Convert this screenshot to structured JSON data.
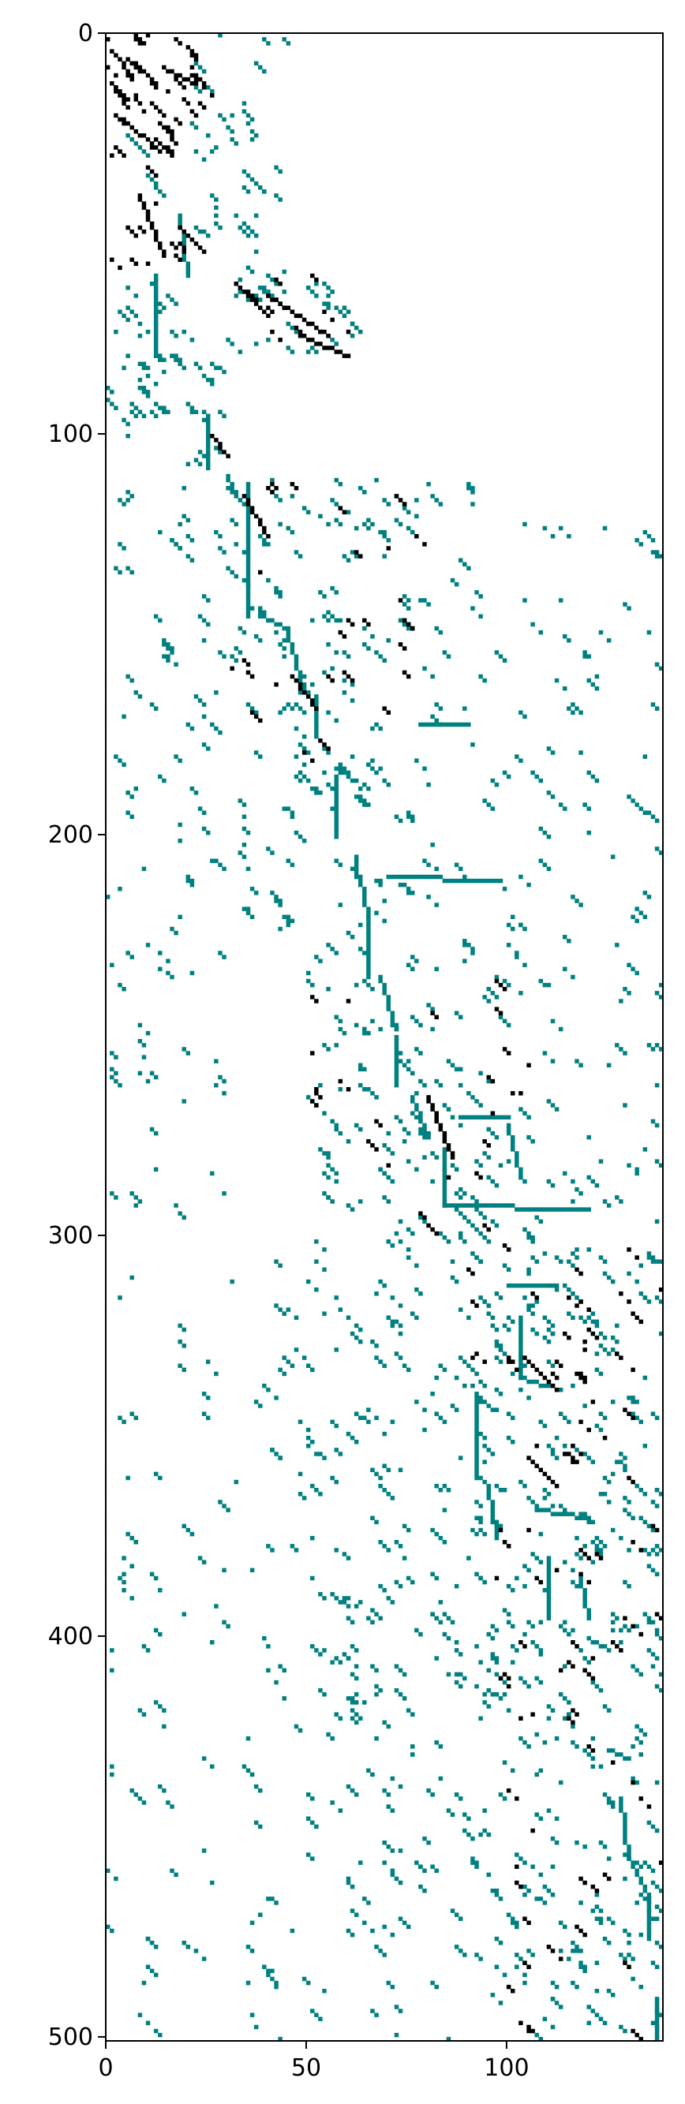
{
  "chart_data": {
    "type": "heatmap",
    "title": "",
    "xlabel": "",
    "ylabel": "",
    "xlim": [
      0,
      139
    ],
    "ylim": [
      0,
      501
    ],
    "y_inverted": true,
    "x_ticks": [
      0,
      50,
      100
    ],
    "y_ticks": [
      0,
      100,
      200,
      300,
      400,
      500
    ],
    "x_tick_labels": [
      "0",
      "50",
      "100"
    ],
    "y_tick_labels": [
      "0",
      "100",
      "200",
      "300",
      "400",
      "500"
    ],
    "grid": false,
    "legend": "none",
    "colors": {
      "primary": "#008080",
      "secondary": "#000000",
      "background": "#ffffff"
    },
    "series": [
      {
        "color": "#008080",
        "segments": [
          [
            12,
            60,
            12,
            80
          ],
          [
            25,
            95,
            25,
            108
          ],
          [
            35,
            112,
            35,
            145
          ],
          [
            38,
            145,
            45,
            148
          ],
          [
            45,
            150,
            48,
            160
          ],
          [
            48,
            160,
            50,
            165
          ],
          [
            52,
            165,
            52,
            175
          ],
          [
            57,
            185,
            57,
            200
          ],
          [
            62,
            205,
            62,
            210
          ],
          [
            63,
            210,
            65,
            220
          ],
          [
            65,
            220,
            65,
            235
          ],
          [
            68,
            235,
            72,
            248
          ],
          [
            72,
            250,
            72,
            262
          ],
          [
            76,
            265,
            80,
            275
          ],
          [
            84,
            278,
            84,
            292
          ],
          [
            84,
            292,
            120,
            293
          ],
          [
            78,
            172,
            90,
            172
          ],
          [
            70,
            210,
            98,
            211
          ],
          [
            88,
            270,
            100,
            270
          ],
          [
            100,
            272,
            103,
            285
          ],
          [
            100,
            312,
            112,
            312
          ],
          [
            103,
            320,
            103,
            335
          ],
          [
            103,
            335,
            113,
            338
          ],
          [
            92,
            340,
            92,
            360
          ],
          [
            95,
            362,
            97,
            375
          ],
          [
            107,
            368,
            120,
            370
          ],
          [
            110,
            380,
            110,
            395
          ],
          [
            118,
            385,
            120,
            395
          ],
          [
            120,
            400,
            125,
            403
          ],
          [
            125,
            428,
            130,
            430
          ],
          [
            128,
            440,
            130,
            455
          ],
          [
            130,
            455,
            135,
            465
          ],
          [
            135,
            465,
            135,
            475
          ],
          [
            137,
            490,
            137,
            500
          ],
          [
            30,
            110,
            32,
            115
          ],
          [
            18,
            45,
            20,
            60
          ],
          [
            5,
            25,
            10,
            30
          ],
          [
            10,
            35,
            14,
            40
          ]
        ],
        "density": [
          [
            0,
            30,
            0,
            60,
            0.16
          ],
          [
            0,
            60,
            20,
            90,
            0.07
          ],
          [
            20,
            0,
            45,
            55,
            0.06
          ],
          [
            30,
            58,
            62,
            80,
            0.09
          ],
          [
            0,
            80,
            30,
            110,
            0.07
          ],
          [
            30,
            110,
            80,
            160,
            0.06
          ],
          [
            80,
            110,
            139,
            160,
            0.02
          ],
          [
            0,
            110,
            30,
            300,
            0.03
          ],
          [
            30,
            160,
            70,
            230,
            0.05
          ],
          [
            70,
            160,
            139,
            230,
            0.025
          ],
          [
            50,
            230,
            100,
            300,
            0.06
          ],
          [
            100,
            230,
            139,
            300,
            0.03
          ],
          [
            0,
            300,
            50,
            420,
            0.02
          ],
          [
            50,
            300,
            90,
            420,
            0.05
          ],
          [
            90,
            300,
            139,
            420,
            0.07
          ],
          [
            0,
            420,
            60,
            501,
            0.02
          ],
          [
            60,
            420,
            110,
            501,
            0.04
          ],
          [
            110,
            420,
            139,
            501,
            0.06
          ]
        ]
      },
      {
        "color": "#000000",
        "segments": [
          [
            1,
            4,
            6,
            10
          ],
          [
            1,
            12,
            5,
            18
          ],
          [
            5,
            6,
            12,
            12
          ],
          [
            14,
            8,
            22,
            12
          ],
          [
            2,
            20,
            10,
            26
          ],
          [
            32,
            62,
            40,
            70
          ],
          [
            40,
            65,
            55,
            75
          ],
          [
            48,
            75,
            60,
            80
          ],
          [
            8,
            40,
            14,
            55
          ],
          [
            18,
            48,
            24,
            54
          ],
          [
            46,
            160,
            52,
            168
          ],
          [
            80,
            265,
            86,
            280
          ],
          [
            104,
            330,
            112,
            338
          ],
          [
            105,
            355,
            112,
            362
          ],
          [
            34,
            115,
            40,
            125
          ],
          [
            26,
            100,
            30,
            105
          ],
          [
            12,
            26,
            16,
            30
          ]
        ],
        "density": [
          [
            0,
            0,
            25,
            30,
            0.1
          ],
          [
            0,
            30,
            20,
            60,
            0.04
          ],
          [
            30,
            60,
            62,
            80,
            0.03
          ],
          [
            30,
            110,
            80,
            180,
            0.015
          ],
          [
            50,
            230,
            110,
            300,
            0.012
          ],
          [
            90,
            300,
            139,
            420,
            0.02
          ],
          [
            100,
            420,
            139,
            501,
            0.015
          ]
        ]
      }
    ]
  }
}
